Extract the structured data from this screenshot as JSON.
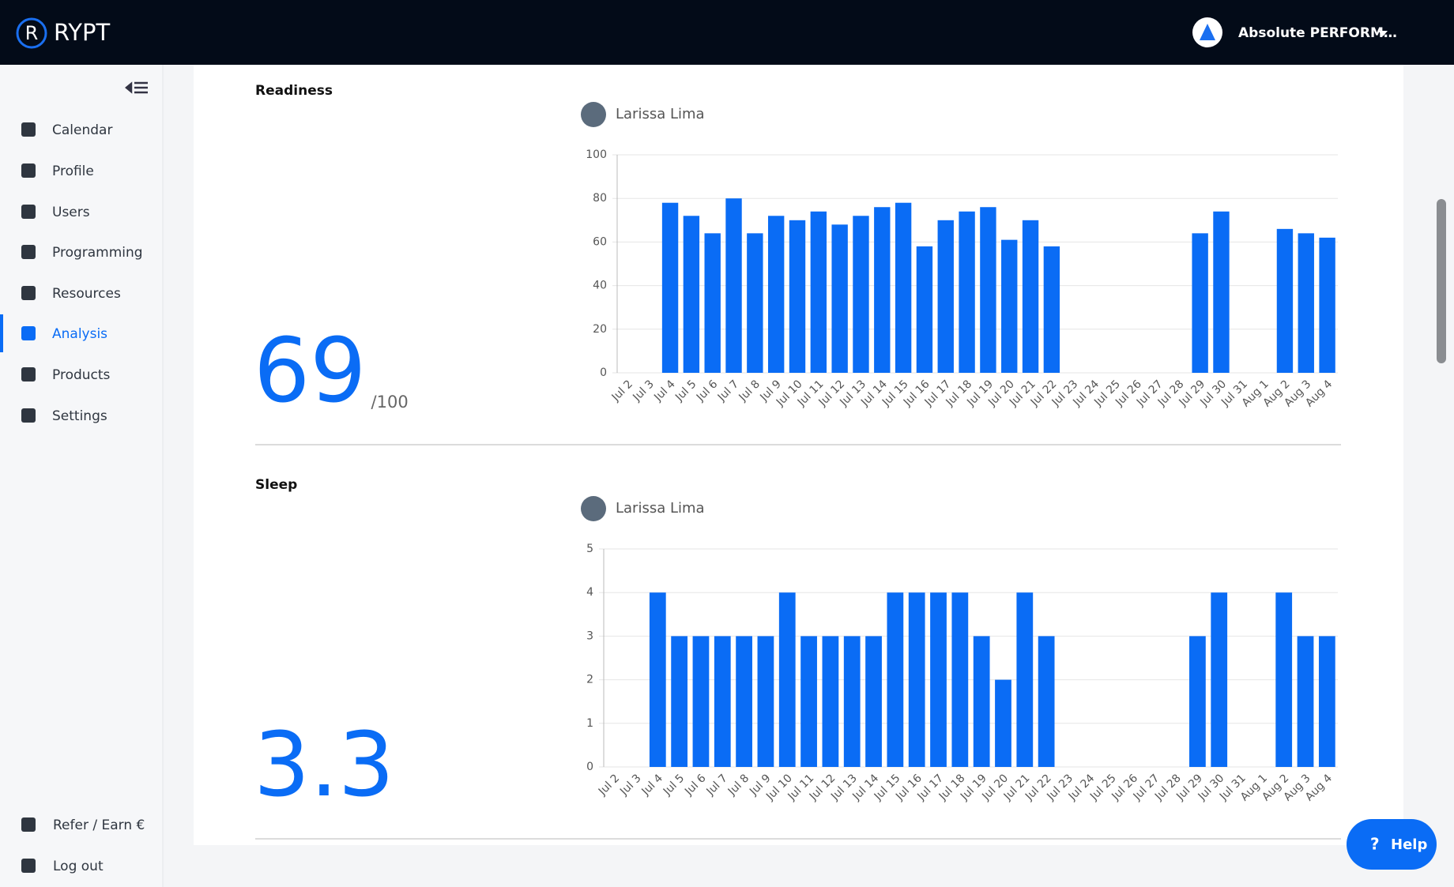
{
  "brand": "RYPT",
  "account": "Absolute PERFORM…",
  "nav": [
    "Calendar",
    "Profile",
    "Users",
    "Programming",
    "Resources",
    "Analysis",
    "Products",
    "Settings"
  ],
  "active_nav": 5,
  "bottom_nav": [
    "Refer / Earn €",
    "Log out"
  ],
  "help": "Help",
  "sections": [
    {
      "title": "Readiness",
      "score": "69",
      "score_suffix": "/100",
      "person": "Larissa Lima",
      "chart_data": {
        "type": "bar",
        "color": "#0a6cf5",
        "categories": [
          "Jul 2",
          "Jul 3",
          "Jul 4",
          "Jul 5",
          "Jul 6",
          "Jul 7",
          "Jul 8",
          "Jul 9",
          "Jul 10",
          "Jul 11",
          "Jul 12",
          "Jul 13",
          "Jul 14",
          "Jul 15",
          "Jul 16",
          "Jul 17",
          "Jul 18",
          "Jul 19",
          "Jul 20",
          "Jul 21",
          "Jul 22",
          "Jul 23",
          "Jul 24",
          "Jul 25",
          "Jul 26",
          "Jul 27",
          "Jul 28",
          "Jul 29",
          "Jul 30",
          "Jul 31",
          "Aug 1",
          "Aug 2",
          "Aug 3",
          "Aug 4"
        ],
        "values": [
          null,
          null,
          78,
          72,
          64,
          80,
          64,
          72,
          70,
          74,
          68,
          72,
          76,
          78,
          58,
          70,
          74,
          76,
          61,
          70,
          58,
          null,
          null,
          null,
          null,
          null,
          null,
          64,
          74,
          null,
          null,
          66,
          64,
          62
        ],
        "ylim": [
          0,
          100
        ],
        "yticks": [
          0,
          20,
          40,
          60,
          80,
          100
        ],
        "grid": true
      }
    },
    {
      "title": "Sleep",
      "score": "3.3",
      "person": "Larissa Lima",
      "chart_data": {
        "type": "bar",
        "color": "#0a6cf5",
        "categories": [
          "Jul 2",
          "Jul 3",
          "Jul 4",
          "Jul 5",
          "Jul 6",
          "Jul 7",
          "Jul 8",
          "Jul 9",
          "Jul 10",
          "Jul 11",
          "Jul 12",
          "Jul 13",
          "Jul 14",
          "Jul 15",
          "Jul 16",
          "Jul 17",
          "Jul 18",
          "Jul 19",
          "Jul 20",
          "Jul 21",
          "Jul 22",
          "Jul 23",
          "Jul 24",
          "Jul 25",
          "Jul 26",
          "Jul 27",
          "Jul 28",
          "Jul 29",
          "Jul 30",
          "Jul 31",
          "Aug 1",
          "Aug 2",
          "Aug 3",
          "Aug 4"
        ],
        "values": [
          null,
          null,
          4,
          3,
          3,
          3,
          3,
          3,
          4,
          3,
          3,
          3,
          3,
          4,
          4,
          4,
          4,
          3,
          2,
          4,
          3,
          null,
          null,
          null,
          null,
          null,
          null,
          3,
          4,
          null,
          null,
          4,
          3,
          3
        ],
        "ylim": [
          0,
          5
        ],
        "yticks": [
          0,
          1,
          2,
          3,
          4,
          5
        ],
        "grid": true
      }
    }
  ]
}
